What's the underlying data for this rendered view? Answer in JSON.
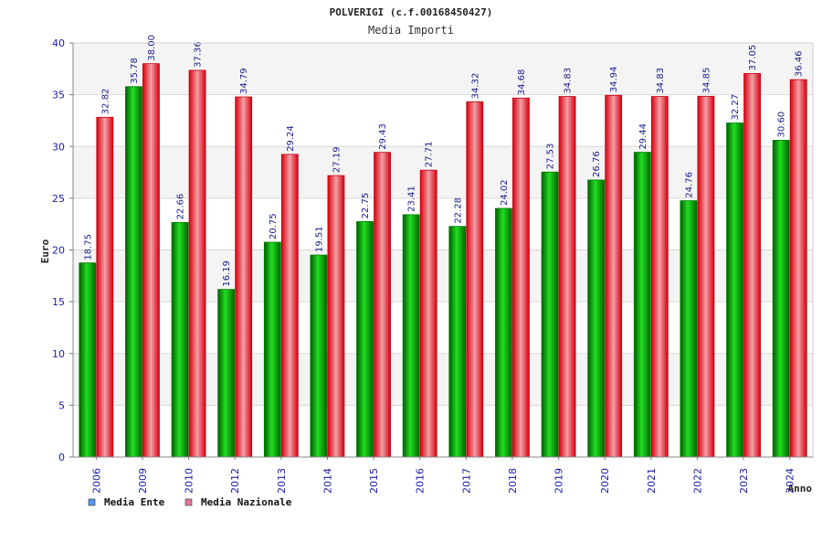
{
  "chart_data": {
    "type": "bar",
    "title": "POLVERIGI (c.f.00168450427)",
    "subtitle": "Media Importi",
    "xlabel": "Anno",
    "ylabel": "Euro",
    "ylim": [
      0,
      40
    ],
    "yticks": [
      0,
      5,
      10,
      15,
      20,
      25,
      30,
      35,
      40
    ],
    "grid": true,
    "legend_position": "bottom-left",
    "categories": [
      "2006",
      "2009",
      "2010",
      "2012",
      "2013",
      "2014",
      "2015",
      "2016",
      "2017",
      "2018",
      "2019",
      "2020",
      "2021",
      "2022",
      "2023",
      "2024"
    ],
    "series": [
      {
        "name": "Media Ente",
        "color": "#00aa00",
        "legend_color": "#5599ee",
        "values": [
          18.75,
          35.78,
          22.66,
          16.19,
          20.75,
          19.51,
          22.75,
          23.41,
          22.28,
          24.02,
          27.53,
          26.76,
          29.44,
          24.76,
          32.27,
          30.6
        ],
        "labels": [
          "18.75",
          "35.78",
          "22.66",
          "16.19",
          "20.75",
          "19.51",
          "22.75",
          "23.41",
          "22.28",
          "24.02",
          "27.53",
          "26.76",
          "29.44",
          "24.76",
          "32.27",
          "30.60"
        ]
      },
      {
        "name": "Media Nazionale",
        "color": "#e8101e",
        "legend_color": "#dd7799",
        "values": [
          32.82,
          38.0,
          37.36,
          34.79,
          29.24,
          27.19,
          29.43,
          27.71,
          34.32,
          34.68,
          34.83,
          34.94,
          34.83,
          34.85,
          37.05,
          36.46
        ],
        "labels": [
          "32.82",
          "38.00",
          "37.36",
          "34.79",
          "29.24",
          "27.19",
          "29.43",
          "27.71",
          "34.32",
          "34.68",
          "34.83",
          "34.94",
          "34.83",
          "34.85",
          "37.05",
          "36.46"
        ]
      }
    ]
  }
}
